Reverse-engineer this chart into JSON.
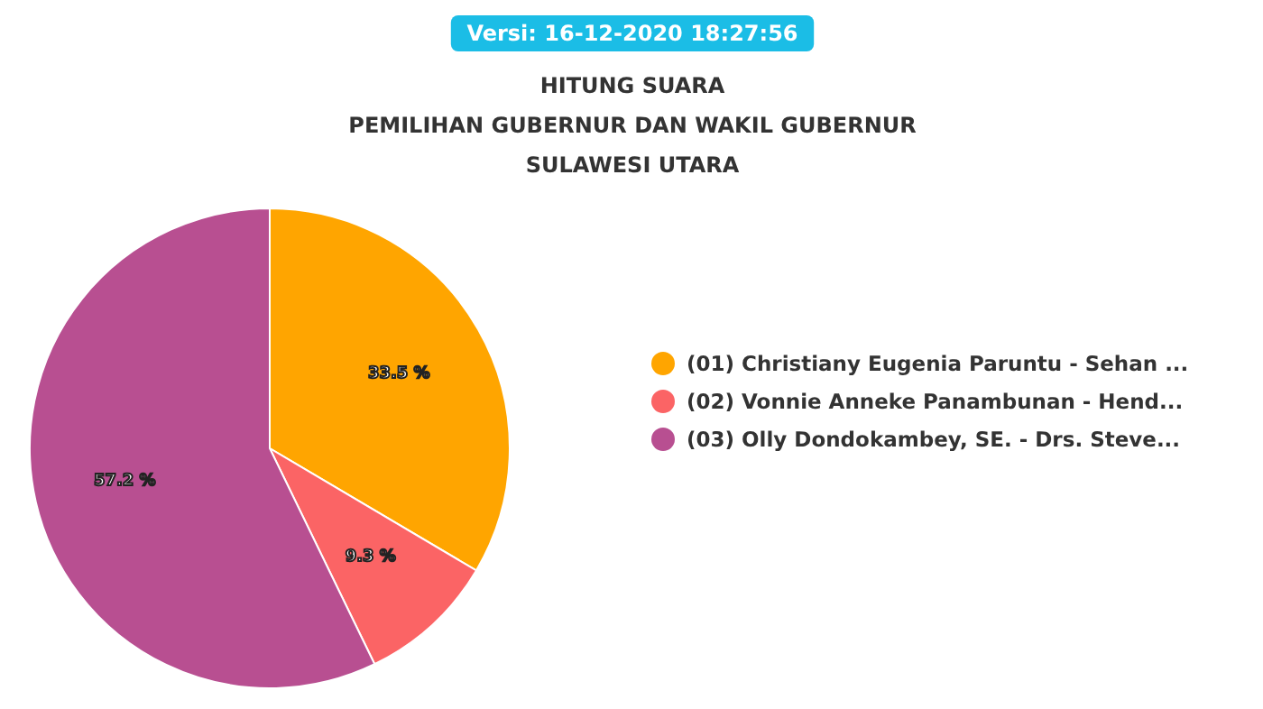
{
  "chart_data": {
    "type": "pie",
    "title": "HITUNG SUARA\nPEMILIHAN GUBERNUR DAN WAKIL GUBERNUR\nSULAWESI UTARA",
    "annotations": [
      "Versi: 16-12-2020 18:27:56"
    ],
    "categories": [
      "(01) Christiany Eugenia Paruntu - Sehan ...",
      "(02) Vonnie Anneke Panambunan - Hend...",
      "(03) Olly Dondokambey, SE. - Drs. Steve..."
    ],
    "values": [
      33.5,
      9.3,
      57.2
    ],
    "colors": [
      "#ffa500",
      "#fb6465",
      "#b84f91"
    ],
    "value_labels": [
      "33.5 %",
      "9.3 %",
      "57.2 %"
    ],
    "legend": "right"
  }
}
